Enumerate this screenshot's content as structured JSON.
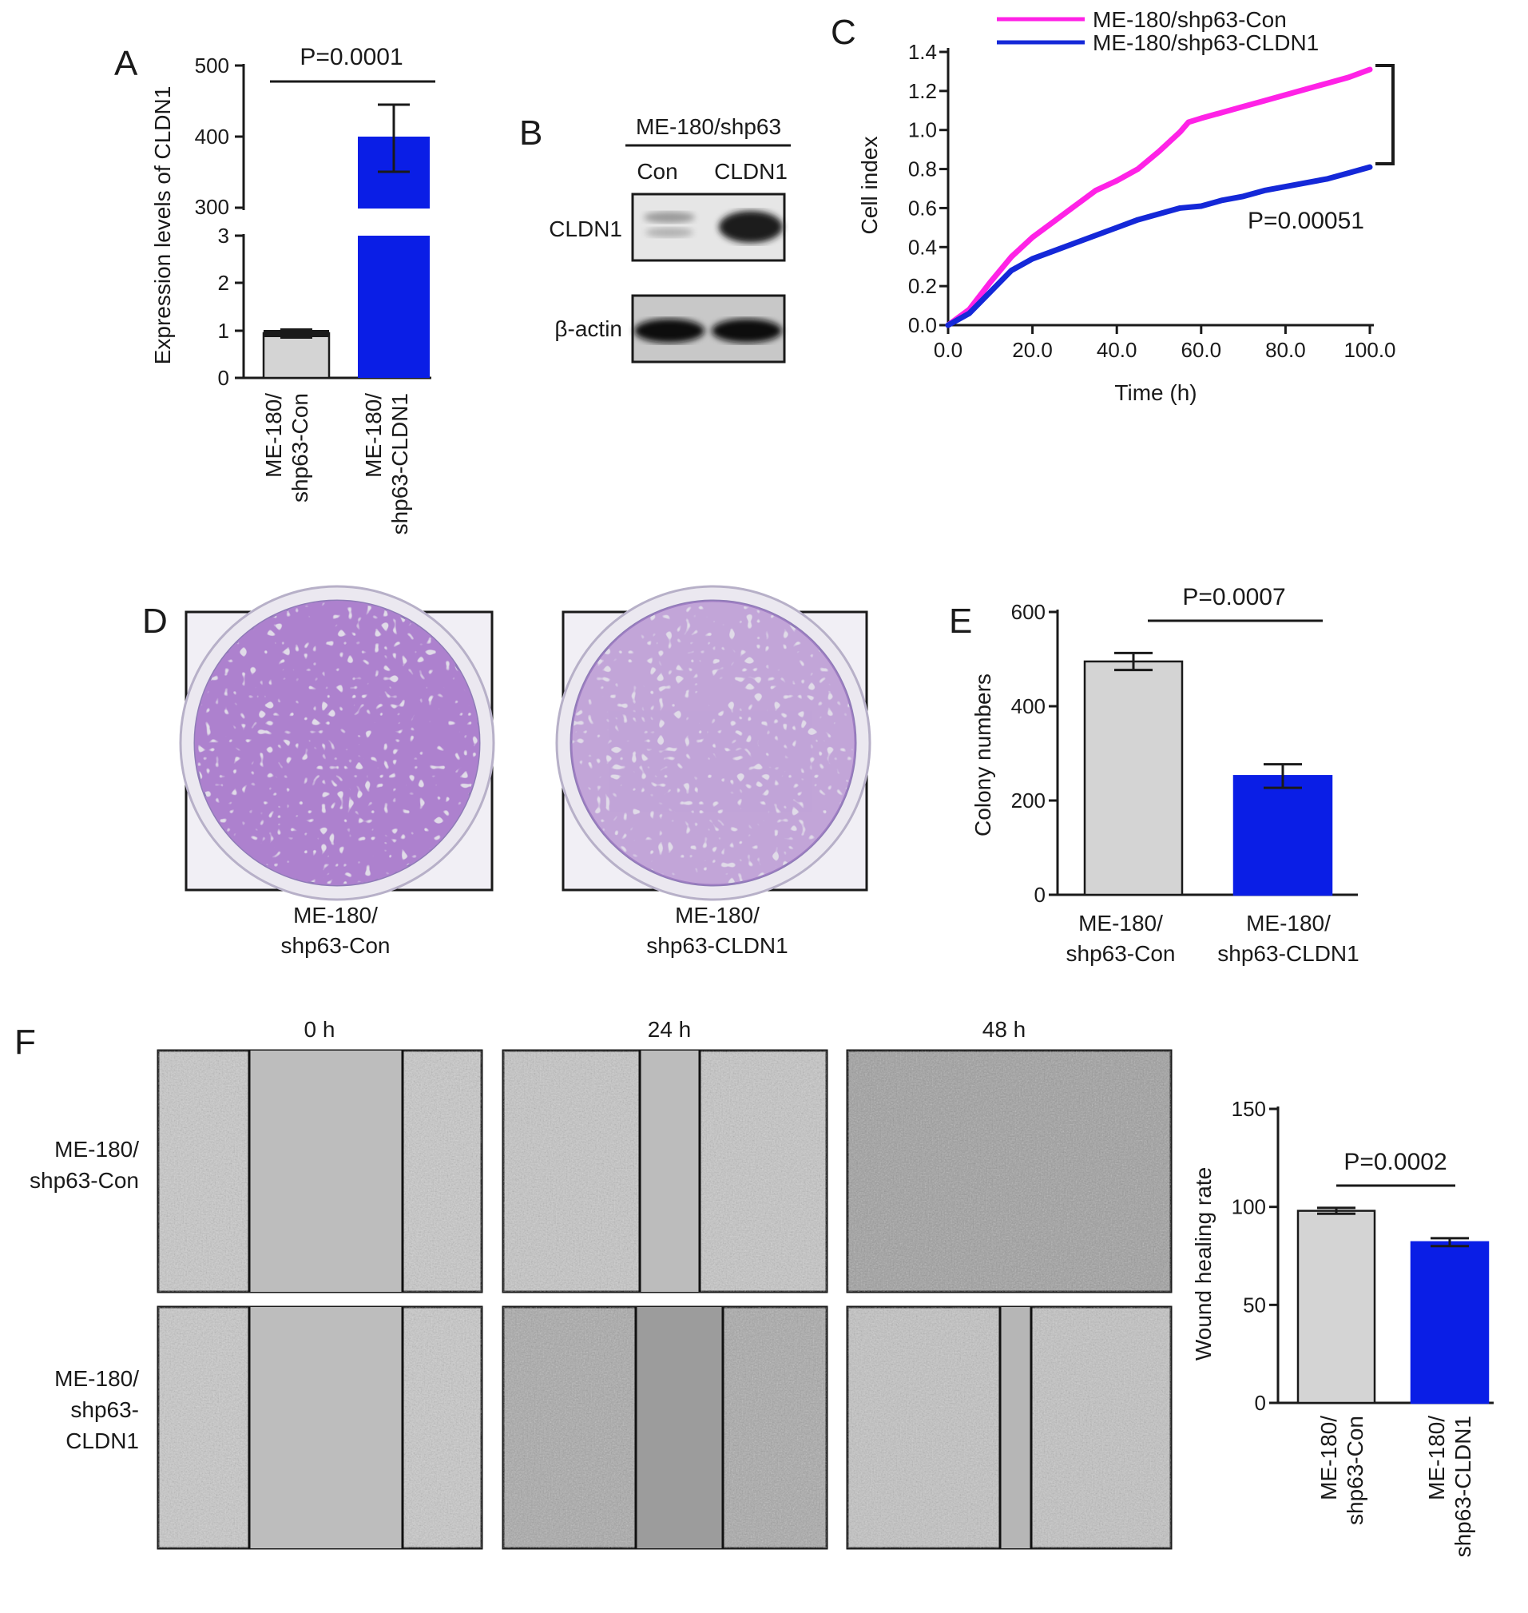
{
  "colors": {
    "con": "#d4d4d4",
    "cldn1": "#0a1ee6",
    "line_con": "#ff22e6",
    "line_cldn1": "#1428d8",
    "axis": "#1a1a1a"
  },
  "panels": {
    "A": "A",
    "B": "B",
    "C": "C",
    "D": "D",
    "E": "E",
    "F": "F"
  },
  "blot": {
    "header": "ME-180/shp63",
    "lanes": [
      "Con",
      "CLDN1"
    ],
    "rows": [
      "CLDN1",
      "β-actin"
    ]
  },
  "colony": {
    "captions": [
      [
        "ME-180/",
        "shp63-Con"
      ],
      [
        "ME-180/",
        "shp63-CLDN1"
      ]
    ]
  },
  "wound": {
    "times": [
      "0 h",
      "24 h",
      "48 h"
    ],
    "row_labels": [
      [
        "ME-180/",
        "shp63-Con"
      ],
      [
        "ME-180/",
        "shp63-",
        "CLDN1"
      ]
    ]
  },
  "chart_data": [
    {
      "panel": "A",
      "type": "bar",
      "ylabel": "Expression levels of CLDN1",
      "categories": [
        [
          "ME-180/",
          "shp63-Con"
        ],
        [
          "ME-180/",
          "shp63-CLDN1"
        ]
      ],
      "values": [
        0.95,
        400
      ],
      "errors": [
        0.08,
        45
      ],
      "axis_break": true,
      "ylim_lower": [
        0,
        3
      ],
      "ylim_upper": [
        300,
        500
      ],
      "yticks_lower": [
        "0",
        "1",
        "2",
        "3"
      ],
      "yticks_upper": [
        "300",
        "400",
        "500"
      ],
      "pvalue": "P=0.0001"
    },
    {
      "panel": "C",
      "type": "line",
      "xlabel": "Time (h)",
      "ylabel": "Cell index",
      "xlim": [
        0,
        100
      ],
      "ylim": [
        0,
        1.4
      ],
      "xticks": [
        "0.0",
        "20.0",
        "40.0",
        "60.0",
        "80.0",
        "100.0"
      ],
      "yticks": [
        "0.0",
        "0.2",
        "0.4",
        "0.6",
        "0.8",
        "1.0",
        "1.2",
        "1.4"
      ],
      "pvalue": "P=0.00051",
      "series": [
        {
          "name": "ME-180/shp63-Con",
          "x": [
            0,
            5,
            10,
            15,
            20,
            25,
            30,
            35,
            40,
            45,
            50,
            55,
            57,
            60,
            65,
            70,
            75,
            80,
            85,
            90,
            95,
            100
          ],
          "y": [
            0,
            0.08,
            0.22,
            0.35,
            0.45,
            0.53,
            0.61,
            0.69,
            0.74,
            0.8,
            0.89,
            0.99,
            1.04,
            1.06,
            1.09,
            1.12,
            1.15,
            1.18,
            1.21,
            1.24,
            1.27,
            1.31
          ]
        },
        {
          "name": "ME-180/shp63-CLDN1",
          "x": [
            0,
            5,
            10,
            15,
            20,
            25,
            30,
            35,
            40,
            45,
            50,
            55,
            60,
            65,
            70,
            75,
            80,
            85,
            90,
            95,
            100
          ],
          "y": [
            0,
            0.06,
            0.17,
            0.28,
            0.34,
            0.38,
            0.42,
            0.46,
            0.5,
            0.54,
            0.57,
            0.6,
            0.61,
            0.64,
            0.66,
            0.69,
            0.71,
            0.73,
            0.75,
            0.78,
            0.81
          ]
        }
      ]
    },
    {
      "panel": "E",
      "type": "bar",
      "ylabel": "Colony numbers",
      "categories": [
        [
          "ME-180/",
          "shp63-Con"
        ],
        [
          "ME-180/",
          "shp63-CLDN1"
        ]
      ],
      "values": [
        495,
        252
      ],
      "errors": [
        18,
        25
      ],
      "ylim": [
        0,
        600
      ],
      "yticks": [
        "0",
        "200",
        "400",
        "600"
      ],
      "pvalue": "P=0.0007"
    },
    {
      "panel": "F",
      "type": "bar",
      "ylabel": "Wound healing rate",
      "categories": [
        [
          "ME-180/",
          "shp63-Con"
        ],
        [
          "ME-180/",
          "shp63-CLDN1"
        ]
      ],
      "values": [
        98,
        82
      ],
      "errors": [
        1.5,
        2
      ],
      "ylim": [
        0,
        150
      ],
      "yticks": [
        "0",
        "50",
        "100",
        "150"
      ],
      "pvalue": "P=0.0002"
    }
  ]
}
